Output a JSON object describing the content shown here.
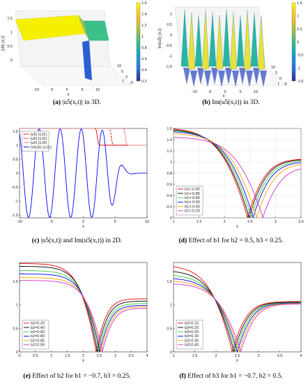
{
  "captions": [
    {
      "tag": "(a)",
      "text": "|u5(x,t)| in 3D."
    },
    {
      "tag": "(b)",
      "text": "Im(u5(x,t)) in 3D."
    },
    {
      "tag": "(c)",
      "text": "|u5(x,t)| and Im(u5(x,t)) in 2D."
    },
    {
      "tag": "(d)",
      "text": "Effect of b1 for b2 = 0.5, b3 = 0.25."
    },
    {
      "tag": "(e)",
      "text": "Effect of b2 for b1 = −0.7, b3 = 0.25."
    },
    {
      "tag": "(f)",
      "text": "Effect of b3 for b1 = −0.7, b2 = 0.5."
    }
  ],
  "colors": {
    "red": "#ff0000",
    "black": "#000000",
    "green": "#33cc33",
    "blue": "#0000ff",
    "orange": "#ffa500",
    "magenta": "#cc33cc",
    "darkred": "#cc0000",
    "salmon": "#ff8080"
  },
  "panel_a": {
    "zlabel": "|u5| (x,t)",
    "xlabel": "x",
    "ylabel": "t",
    "colorbar_ticks": [
      "1.6",
      "1.4",
      "1.2",
      "1",
      "0.8",
      "0.6",
      "0.4",
      "0.2"
    ],
    "x_ticks": [
      "-10",
      "-5",
      "0",
      "5",
      "10"
    ],
    "t_ticks": [
      "10",
      "5",
      "0",
      "-5"
    ],
    "z_ticks": [
      "1.5",
      "1",
      "0.5",
      "0"
    ]
  },
  "panel_b": {
    "zlabel": "Im(u5) (x,t)",
    "xlabel": "x",
    "ylabel": "t",
    "colorbar_ticks": [
      "1.5",
      "1",
      "0.5",
      "0",
      "-0.5",
      "-1",
      "-1.5"
    ],
    "x_ticks": [
      "-10",
      "-5",
      "0",
      "5",
      "10"
    ],
    "t_ticks": [
      "10",
      "5",
      "0",
      "-5"
    ],
    "z_ticks": [
      "1",
      "0.5",
      "0",
      "-0.5",
      "-1",
      "-1.5"
    ]
  },
  "chart_data": [
    {
      "type": "line",
      "panel": "c",
      "xlabel": "x",
      "ylabel": "",
      "xlim": [
        -10,
        10
      ],
      "ylim": [
        -1.6,
        1.6
      ],
      "x_ticks": [
        -10,
        -5,
        0,
        5,
        10
      ],
      "y_ticks": [
        1.5,
        1,
        0.5,
        0,
        -0.5,
        -1,
        -1.5
      ],
      "legend": "top-left",
      "grid": false,
      "series": [
        {
          "name": "|u5| (x,t1)",
          "color": "red",
          "style": "solid",
          "kind": "kink",
          "center": 2.2
        },
        {
          "name": "|u5| (x,t2)",
          "color": "darkred",
          "style": "dashed",
          "kind": "kink",
          "center": 4.4
        },
        {
          "name": "|u5| (x,t3)",
          "color": "salmon",
          "style": "solid",
          "kind": "kink",
          "center": 6.6
        },
        {
          "name": "Im(u5) (x,t1)",
          "color": "blue",
          "style": "solid",
          "kind": "osc",
          "center": 2.2
        }
      ]
    },
    {
      "type": "line",
      "panel": "d",
      "xlabel": "x",
      "ylabel": "",
      "xlim": [
        1,
        3.5
      ],
      "ylim": [
        0,
        1.6
      ],
      "x_ticks": [
        1,
        1.5,
        2,
        2.5,
        3,
        3.5
      ],
      "y_ticks": [
        0,
        0.2,
        0.4,
        0.6,
        0.8,
        1,
        1.2,
        1.4,
        1.6
      ],
      "legend": "bottom-left",
      "grid": true,
      "series": [
        {
          "name": "b1=-0.90",
          "color": "red",
          "c": 2.45,
          "left": 1.62,
          "right": 1.06
        },
        {
          "name": "b1=-0.85",
          "color": "black",
          "c": 2.48,
          "left": 1.6,
          "right": 1.05
        },
        {
          "name": "b1=-0.80",
          "color": "green",
          "c": 2.52,
          "left": 1.58,
          "right": 1.03
        },
        {
          "name": "b1=-0.60",
          "color": "blue",
          "c": 2.56,
          "left": 1.56,
          "right": 1.01
        },
        {
          "name": "b1=-0.40",
          "color": "orange",
          "c": 2.63,
          "left": 1.52,
          "right": 0.98
        },
        {
          "name": "b1=-0.20",
          "color": "magenta",
          "c": 2.75,
          "left": 1.45,
          "right": 0.92
        }
      ]
    },
    {
      "type": "line",
      "panel": "e",
      "xlabel": "x",
      "ylabel": "",
      "xlim": [
        0,
        4
      ],
      "ylim": [
        0,
        1.9
      ],
      "x_ticks": [
        0,
        0.5,
        1,
        1.5,
        2,
        2.5,
        3,
        3.5,
        4
      ],
      "y_ticks": [
        0,
        0.5,
        1,
        1.5
      ],
      "legend": "bottom-left",
      "grid": false,
      "series": [
        {
          "name": "b2=0.20",
          "color": "red",
          "c": 2.4,
          "left": 1.88,
          "right": 1.13
        },
        {
          "name": "b2=0.40",
          "color": "black",
          "c": 2.44,
          "left": 1.82,
          "right": 1.08
        },
        {
          "name": "b2=0.60",
          "color": "green",
          "c": 2.48,
          "left": 1.73,
          "right": 1.03
        },
        {
          "name": "b2=0.80",
          "color": "blue",
          "c": 2.52,
          "left": 1.66,
          "right": 0.99
        },
        {
          "name": "b2=0.85",
          "color": "orange",
          "c": 2.56,
          "left": 1.58,
          "right": 0.96
        },
        {
          "name": "b2=0.90",
          "color": "magenta",
          "c": 2.6,
          "left": 1.52,
          "right": 0.93
        }
      ]
    },
    {
      "type": "line",
      "panel": "f",
      "xlabel": "x",
      "ylabel": "",
      "xlim": [
        1,
        4
      ],
      "ylim": [
        0,
        1.9
      ],
      "x_ticks": [
        1,
        1.5,
        2,
        2.5,
        3,
        3.5,
        4
      ],
      "y_ticks": [
        0,
        0.5,
        1,
        1.5
      ],
      "legend": "bottom-left",
      "grid": false,
      "series": [
        {
          "name": "b3=0.15",
          "color": "red",
          "c": 2.38,
          "left": 1.85,
          "right": 1.07
        },
        {
          "name": "b3=0.20",
          "color": "black",
          "c": 2.42,
          "left": 1.74,
          "right": 1.06
        },
        {
          "name": "b3=0.25",
          "color": "green",
          "c": 2.46,
          "left": 1.65,
          "right": 1.05
        },
        {
          "name": "b3=0.30",
          "color": "blue",
          "c": 2.5,
          "left": 1.58,
          "right": 1.04
        },
        {
          "name": "b3=0.35",
          "color": "orange",
          "c": 2.54,
          "left": 1.52,
          "right": 1.03
        },
        {
          "name": "b3=0.40",
          "color": "magenta",
          "c": 2.58,
          "left": 1.46,
          "right": 1.02
        }
      ]
    }
  ]
}
